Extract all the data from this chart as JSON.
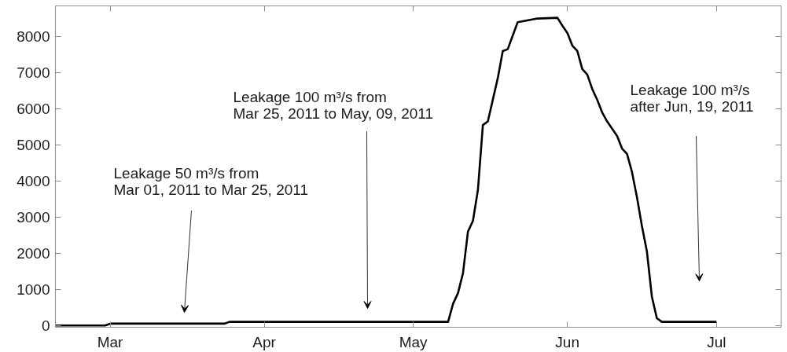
{
  "chart_data": {
    "type": "line",
    "x": [
      "2011-02-18",
      "2011-02-28",
      "2011-03-01",
      "2011-03-24",
      "2011-03-25",
      "2011-05-08",
      "2011-05-09",
      "2011-05-10",
      "2011-05-11",
      "2011-05-12",
      "2011-05-13",
      "2011-05-14",
      "2011-05-15",
      "2011-05-16",
      "2011-05-18",
      "2011-05-19",
      "2011-05-20",
      "2011-05-22",
      "2011-05-26",
      "2011-05-30",
      "2011-05-31",
      "2011-06-01",
      "2011-06-02",
      "2011-06-03",
      "2011-06-04",
      "2011-06-05",
      "2011-06-06",
      "2011-06-07",
      "2011-06-08",
      "2011-06-09",
      "2011-06-10",
      "2011-06-11",
      "2011-06-12",
      "2011-06-13",
      "2011-06-14",
      "2011-06-15",
      "2011-06-16",
      "2011-06-17",
      "2011-06-18",
      "2011-06-19",
      "2011-06-20",
      "2011-07-01"
    ],
    "series": [
      {
        "color": "#000000",
        "values": [
          0,
          0,
          50,
          50,
          100,
          100,
          600,
          900,
          1450,
          2600,
          2900,
          3750,
          5550,
          5650,
          6850,
          7600,
          7650,
          8400,
          8500,
          8520,
          8300,
          8100,
          7750,
          7600,
          7100,
          6950,
          6550,
          6250,
          5900,
          5650,
          5450,
          5250,
          4900,
          4750,
          4250,
          3550,
          2750,
          2050,
          800,
          200,
          100,
          100
        ]
      }
    ],
    "xlim": [
      "2011-02-18",
      "2011-07-14"
    ],
    "ylim": [
      -50,
      8850
    ],
    "xticks": [
      {
        "value": "2011-03-01",
        "label": "Mar"
      },
      {
        "value": "2011-04-01",
        "label": "Apr"
      },
      {
        "value": "2011-05-01",
        "label": "May"
      },
      {
        "value": "2011-06-01",
        "label": "Jun"
      },
      {
        "value": "2011-07-01",
        "label": "Jul"
      }
    ],
    "yticks": [
      0,
      1000,
      2000,
      3000,
      4000,
      5000,
      6000,
      7000,
      8000
    ],
    "annotations": [
      "Leakage 50 m³/s from\nMar 01, 2011 to Mar 25, 2011",
      "Leakage 100 m³/s from\nMar 25, 2011 to May, 09, 2011",
      "Leakage 100 m³/s\nafter Jun, 19, 2011"
    ]
  }
}
